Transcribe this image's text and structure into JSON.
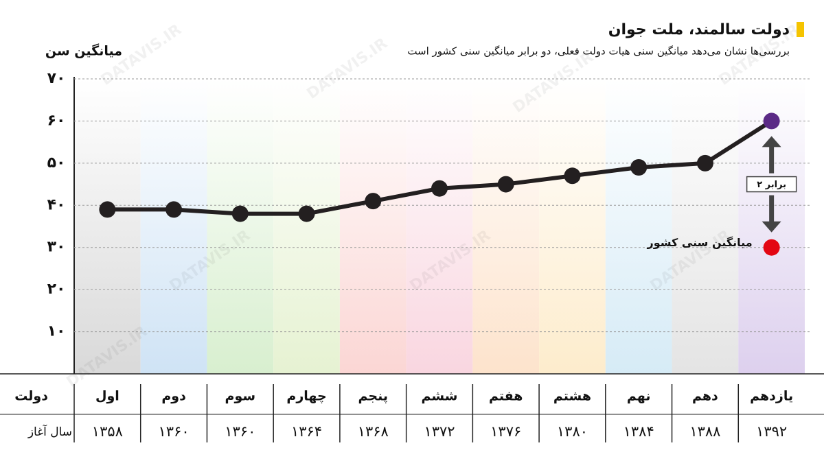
{
  "chart_data": {
    "type": "line",
    "title": "دولت سالمند، ملت جوان",
    "subtitle": "بررسی‌ها نشان می‌دهد میانگین سنی هیات دولت فعلی، دو برابر میانگین سنی کشور است",
    "y_label": "میانگین سن",
    "categories": [
      "اول",
      "دوم",
      "سوم",
      "چهارم",
      "پنجم",
      "ششم",
      "هفتم",
      "هشتم",
      "نهم",
      "دهم",
      "یازدهم"
    ],
    "values": [
      39,
      39,
      38,
      38,
      41,
      44,
      45,
      47,
      49,
      50,
      60
    ],
    "color": "#231f20",
    "last_point_color": "#5b2a86",
    "ylim": [
      0,
      70
    ],
    "yticks": [
      {
        "value": 10,
        "label": "۱۰"
      },
      {
        "value": 20,
        "label": "۲۰"
      },
      {
        "value": 30,
        "label": "۳۰"
      },
      {
        "value": 40,
        "label": "۴۰"
      },
      {
        "value": 50,
        "label": "۵۰"
      },
      {
        "value": 60,
        "label": "۶۰"
      },
      {
        "value": 70,
        "label": "۷۰"
      }
    ],
    "grid": true,
    "table": {
      "row_labels": [
        "دولت",
        "سال آغاز"
      ],
      "start_years": [
        "۱۳۵۸",
        "۱۳۶۰",
        "۱۳۶۰",
        "۱۳۶۴",
        "۱۳۶۸",
        "۱۳۷۲",
        "۱۳۷۶",
        "۱۳۸۰",
        "۱۳۸۴",
        "۱۳۸۸",
        "۱۳۹۲"
      ]
    },
    "reference_point": {
      "label": "میانگین سنی کشور",
      "value": 30,
      "color": "#e30613"
    },
    "ratio_label": "۲ برابر",
    "watermark": "DATAVIS.IR"
  }
}
